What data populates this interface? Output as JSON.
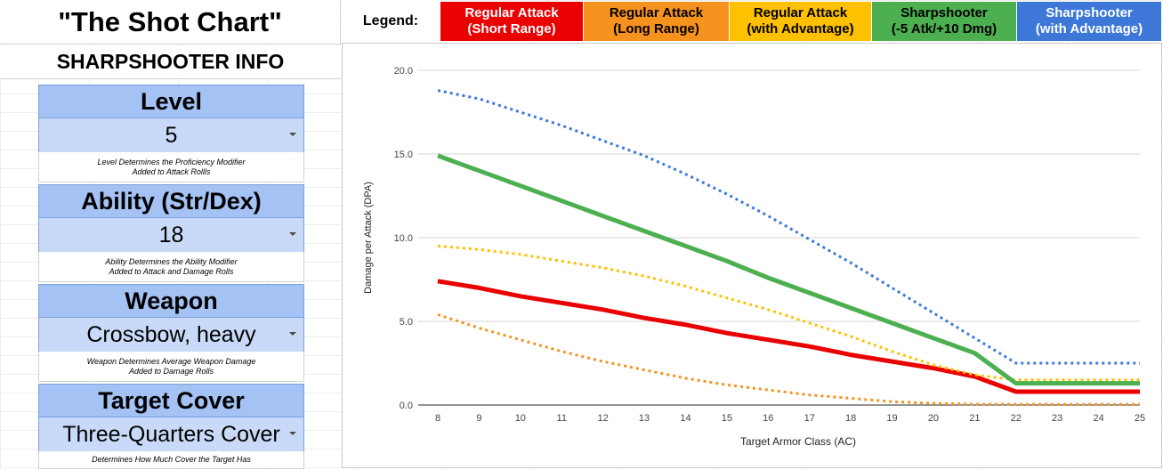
{
  "title": "\"The Shot Chart\"",
  "legend": {
    "label": "Legend:",
    "items": [
      {
        "line1": "Regular Attack",
        "line2": "(Short Range)",
        "color": "#ea0000"
      },
      {
        "line1": "Regular Attack",
        "line2": "(Long Range)",
        "color": "#f6921e"
      },
      {
        "line1": "Regular Attack",
        "line2": "(with Advantage)",
        "color": "#ffc000"
      },
      {
        "line1": "Sharpshooter",
        "line2": "(-5 Atk/+10 Dmg)",
        "color": "#4caf50"
      },
      {
        "line1": "Sharpshooter",
        "line2": "(with Advantage)",
        "color": "#3d78d8"
      }
    ]
  },
  "panel": {
    "header": "SHARPSHOOTER INFO",
    "settings": [
      {
        "label": "Level",
        "value": "5",
        "note1": "Level Determines the Proficiency Modifier",
        "note2": "Added to Attack Rollls"
      },
      {
        "label": "Ability (Str/Dex)",
        "value": "18",
        "note1": "Ability Determines the Ability Modifier",
        "note2": "Added to Attack and Damage Rolls"
      },
      {
        "label": "Weapon",
        "value": "Crossbow, heavy",
        "note1": "Weapon Determines Average Weapon Damage",
        "note2": "Added to Damage Rolls"
      },
      {
        "label": "Target Cover",
        "value": "Three-Quarters Cover",
        "note1": "Determines How Much Cover the Target Has",
        "note2": ""
      }
    ]
  },
  "chart_data": {
    "type": "line",
    "xlabel": "Target Armor Class (AC)",
    "ylabel": "Damage per Attack (DPA)",
    "ylim": [
      0,
      20
    ],
    "yticks": [
      "0.0",
      "5.0",
      "10.0",
      "15.0",
      "20.0"
    ],
    "x": [
      8,
      9,
      10,
      11,
      12,
      13,
      14,
      15,
      16,
      17,
      18,
      19,
      20,
      21,
      22,
      23,
      24,
      25
    ],
    "grid": true,
    "series": [
      {
        "name": "Regular Attack (Short Range)",
        "color": "#ea0000",
        "style": "solid",
        "width": 5,
        "values": [
          7.4,
          7.0,
          6.5,
          6.1,
          5.7,
          5.2,
          4.8,
          4.3,
          3.9,
          3.5,
          3.0,
          2.6,
          2.2,
          1.7,
          0.8,
          0.8,
          0.8,
          0.8
        ]
      },
      {
        "name": "Regular Attack (Long Range)",
        "color": "#f6921e",
        "style": "dotted",
        "width": 3,
        "values": [
          5.4,
          4.6,
          3.9,
          3.2,
          2.6,
          2.1,
          1.6,
          1.2,
          0.9,
          0.6,
          0.4,
          0.2,
          0.1,
          0.05,
          0.04,
          0.04,
          0.04,
          0.04
        ]
      },
      {
        "name": "Regular Attack (with Advantage)",
        "color": "#ffc000",
        "style": "dotted",
        "width": 3,
        "values": [
          9.5,
          9.3,
          9.0,
          8.6,
          8.2,
          7.7,
          7.1,
          6.4,
          5.7,
          4.9,
          4.1,
          3.2,
          2.4,
          1.8,
          1.5,
          1.5,
          1.5,
          1.5
        ]
      },
      {
        "name": "Sharpshooter (-5 Atk/+10 Dmg)",
        "color": "#4caf50",
        "style": "solid",
        "width": 5,
        "values": [
          14.9,
          14.0,
          13.1,
          12.2,
          11.3,
          10.4,
          9.5,
          8.6,
          7.6,
          6.7,
          5.8,
          4.9,
          4.0,
          3.1,
          1.3,
          1.3,
          1.3,
          1.3
        ]
      },
      {
        "name": "Sharpshooter (with Advantage)",
        "color": "#3d78d8",
        "style": "dotted",
        "width": 3,
        "values": [
          18.8,
          18.3,
          17.5,
          16.7,
          15.8,
          14.9,
          13.8,
          12.6,
          11.3,
          9.9,
          8.5,
          7.0,
          5.5,
          4.0,
          2.5,
          2.5,
          2.5,
          2.5
        ]
      }
    ]
  }
}
